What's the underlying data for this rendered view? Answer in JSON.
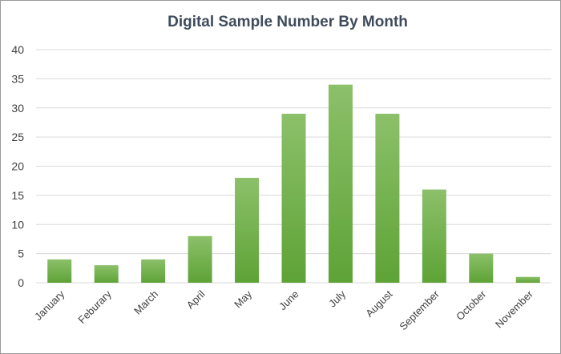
{
  "chart_data": {
    "type": "bar",
    "title": "Digital Sample Number By Month",
    "xlabel": "",
    "ylabel": "",
    "categories": [
      "January",
      "Feburary",
      "March",
      "April",
      "May",
      "June",
      "July",
      "August",
      "September",
      "October",
      "November"
    ],
    "values": [
      4,
      3,
      4,
      8,
      18,
      29,
      34,
      29,
      16,
      5,
      1
    ],
    "ylim": [
      0,
      40
    ],
    "yticks": [
      0,
      5,
      10,
      15,
      20,
      25,
      30,
      35,
      40
    ],
    "grid": true,
    "legend": "none",
    "colors": {
      "bar_top": "#8cc06a",
      "bar_bottom": "#5ea336",
      "title": "#3f4b5b"
    }
  }
}
